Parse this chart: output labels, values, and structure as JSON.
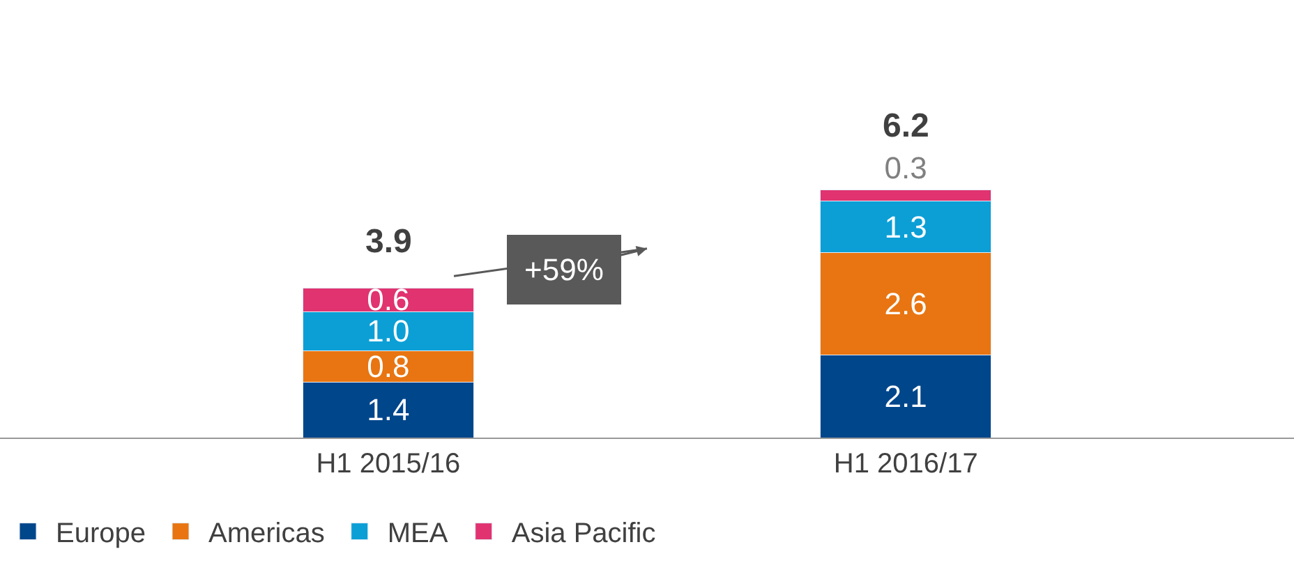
{
  "chart_data": {
    "type": "bar",
    "stacked": true,
    "categories": [
      "H1 2015/16",
      "H1 2016/17"
    ],
    "series": [
      {
        "name": "Europe",
        "color": "#00468b",
        "values": [
          1.4,
          2.1
        ],
        "value_labels": [
          "1.4",
          "2.1"
        ]
      },
      {
        "name": "Americas",
        "color": "#e87511",
        "values": [
          0.8,
          2.6
        ],
        "value_labels": [
          "0.8",
          "2.6"
        ]
      },
      {
        "name": "MEA",
        "color": "#0b9fd6",
        "values": [
          1.0,
          1.3
        ],
        "value_labels": [
          "1.0",
          "1.3"
        ]
      },
      {
        "name": "Asia Pacific",
        "color": "#e0336f",
        "values": [
          0.6,
          0.3
        ],
        "value_labels": [
          "0.6",
          "0.3"
        ]
      }
    ],
    "totals": [
      "3.9",
      "6.2"
    ],
    "tick_labels": "x",
    "annotations": [
      "+59%"
    ],
    "legend": "bottom left"
  }
}
